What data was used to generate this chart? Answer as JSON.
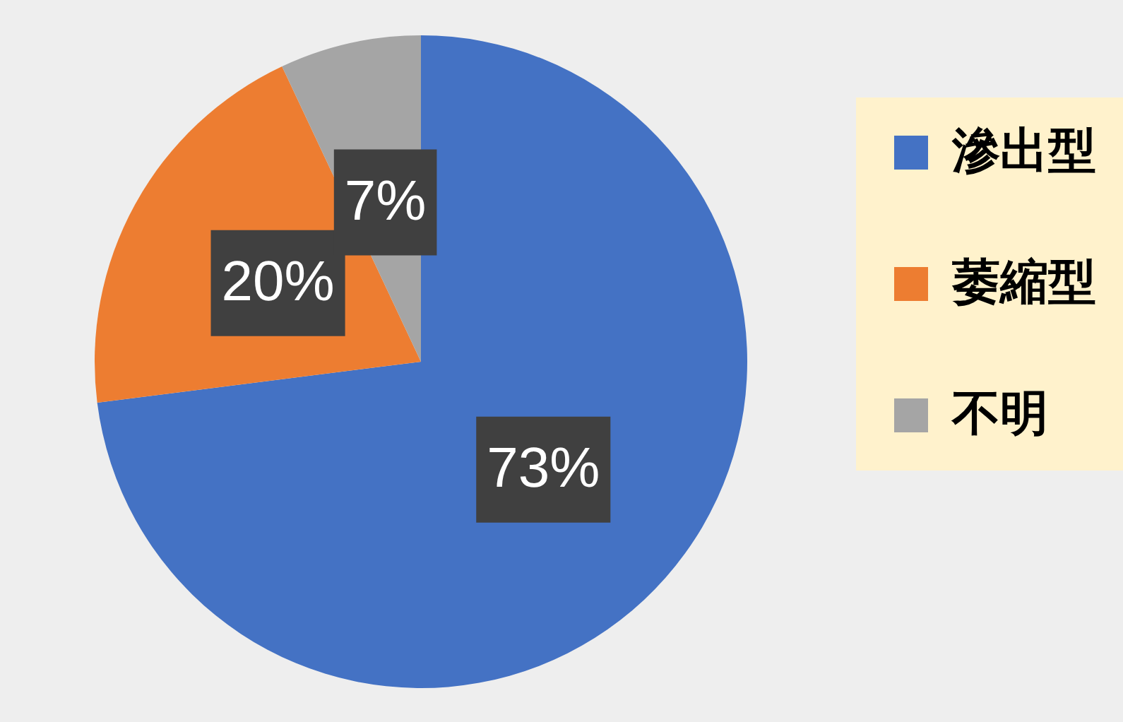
{
  "chart_data": {
    "type": "pie",
    "categories": [
      "滲出型",
      "萎縮型",
      "不明"
    ],
    "values": [
      73,
      20,
      7
    ],
    "colors": [
      "#4472c4",
      "#ed7d31",
      "#a5a5a5"
    ],
    "value_labels": [
      "73%",
      "20%",
      "7%"
    ],
    "legend": "right"
  }
}
